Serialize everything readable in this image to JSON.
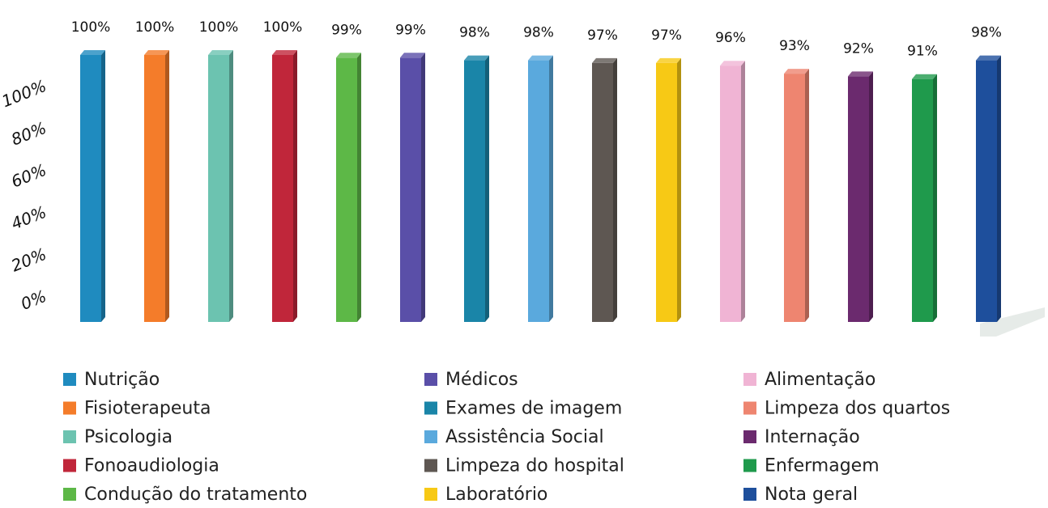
{
  "chart_data": {
    "type": "bar",
    "categories": [
      "Nutrição",
      "Fisioterapeuta",
      "Psicologia",
      "Fonoaudiologia",
      "Condução do tratamento",
      "Médicos",
      "Exames de imagem",
      "Assistência Social",
      "Limpeza do hospital",
      "Laboratório",
      "Alimentação",
      "Limpeza dos quartos",
      "Internação",
      "Enfermagem",
      "Nota geral"
    ],
    "values": [
      100,
      100,
      100,
      100,
      99,
      99,
      98,
      98,
      97,
      97,
      96,
      93,
      92,
      91,
      98
    ],
    "value_labels": [
      "100%",
      "100%",
      "100%",
      "100%",
      "99%",
      "99%",
      "98%",
      "98%",
      "97%",
      "97%",
      "96%",
      "93%",
      "92%",
      "91%",
      "98%"
    ],
    "colors": [
      "#1f8bbf",
      "#f47c2a",
      "#6cc3b0",
      "#c0263a",
      "#5db847",
      "#5a4fa8",
      "#1a85a8",
      "#5aa9dd",
      "#5e5752",
      "#f7c915",
      "#f0b4d4",
      "#ee8570",
      "#6b2a6e",
      "#1f9a4c",
      "#1e4f9c"
    ],
    "ylim": [
      0,
      100
    ],
    "yticks": [
      {
        "value": 0,
        "label": "0%"
      },
      {
        "value": 20,
        "label": "20%"
      },
      {
        "value": 40,
        "label": "40%"
      },
      {
        "value": 60,
        "label": "60%"
      },
      {
        "value": 80,
        "label": "80%"
      },
      {
        "value": 100,
        "label": "100%"
      }
    ],
    "grid": false
  }
}
